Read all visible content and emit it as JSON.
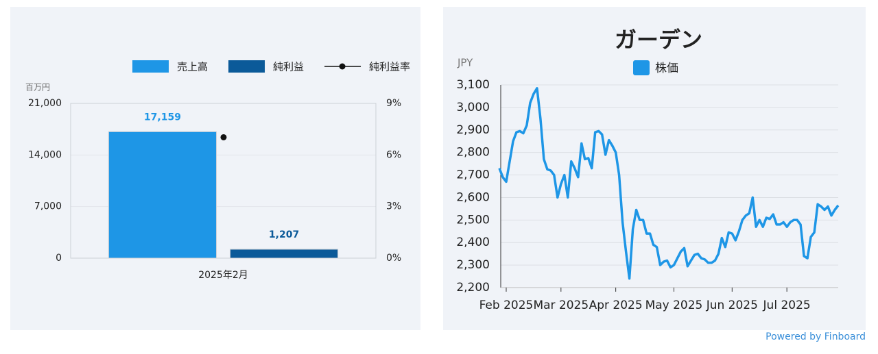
{
  "chart_data": [
    {
      "type": "bar",
      "categories": [
        "2025年2月"
      ],
      "y_label": "百万円",
      "series": [
        {
          "name": "売上高",
          "color": "#1e96e6",
          "values": [
            17159
          ],
          "value_labels": [
            "17,159"
          ]
        },
        {
          "name": "純利益",
          "color": "#0b5a99",
          "values": [
            1207
          ],
          "value_labels": [
            "1,207"
          ]
        },
        {
          "name": "純利益率",
          "color": "#111111",
          "values": [
            7.03
          ],
          "axis": "y2"
        }
      ],
      "ylim": [
        0,
        21000
      ],
      "yticks": [
        0,
        {
          "value": 7000,
          "label": "7,000"
        },
        {
          "value": 14000,
          "label": "14,000"
        },
        {
          "value": 21000,
          "label": "21,000"
        }
      ],
      "y2lim": [
        0,
        9
      ],
      "y2ticks": [
        {
          "value": 0,
          "label": "0%"
        },
        {
          "value": 3,
          "label": "3%"
        },
        {
          "value": 6,
          "label": "6%"
        },
        {
          "value": 9,
          "label": "9%"
        }
      ],
      "grid": true,
      "legend": "top-right"
    },
    {
      "type": "line",
      "title": "ガーデン",
      "y_label": "JPY",
      "categories": [
        null,
        null,
        "Feb 2025",
        null,
        null,
        null,
        null,
        null,
        null,
        null,
        null,
        null,
        null,
        null,
        null,
        null,
        null,
        null,
        "Mar 2025",
        null,
        null,
        null,
        null,
        null,
        null,
        null,
        null,
        null,
        null,
        null,
        null,
        null,
        null,
        null,
        "Apr 2025",
        null,
        null,
        null,
        null,
        null,
        null,
        null,
        null,
        null,
        null,
        null,
        null,
        null,
        null,
        null,
        null,
        "May 2025",
        null,
        null,
        null,
        null,
        null,
        null,
        null,
        null,
        null,
        null,
        null,
        null,
        null,
        null,
        null,
        null,
        "Jun 2025",
        null,
        null,
        null,
        null,
        null,
        null,
        null,
        null,
        null,
        null,
        null,
        null,
        null,
        null,
        null,
        "Jul 2025",
        null,
        null,
        null,
        null,
        null,
        null,
        null,
        null,
        null,
        null,
        null,
        null,
        null,
        null,
        null
      ],
      "series": [
        {
          "name": "株価",
          "color": "#1e96e6",
          "values": [
            2730,
            2690,
            2670,
            2760,
            2850,
            2890,
            2895,
            2885,
            2920,
            3020,
            3060,
            3085,
            2950,
            2770,
            2725,
            2720,
            2700,
            2600,
            2660,
            2700,
            2600,
            2760,
            2730,
            2690,
            2840,
            2770,
            2775,
            2730,
            2890,
            2895,
            2880,
            2790,
            2855,
            2830,
            2800,
            2700,
            2490,
            2360,
            2240,
            2460,
            2545,
            2500,
            2500,
            2440,
            2440,
            2390,
            2380,
            2300,
            2315,
            2320,
            2290,
            2300,
            2330,
            2360,
            2375,
            2295,
            2320,
            2345,
            2350,
            2330,
            2325,
            2310,
            2310,
            2320,
            2350,
            2420,
            2380,
            2445,
            2440,
            2410,
            2450,
            2500,
            2520,
            2530,
            2600,
            2470,
            2500,
            2470,
            2510,
            2505,
            2525,
            2480,
            2480,
            2490,
            2470,
            2490,
            2500,
            2500,
            2480,
            2340,
            2330,
            2425,
            2445,
            2570,
            2560,
            2545,
            2560,
            2520,
            2545,
            2565
          ]
        }
      ],
      "ylim": [
        2200,
        3100
      ],
      "yticks": [
        {
          "value": 2200,
          "label": "2,200"
        },
        {
          "value": 2300,
          "label": "2,300"
        },
        {
          "value": 2400,
          "label": "2,400"
        },
        {
          "value": 2500,
          "label": "2,500"
        },
        {
          "value": 2600,
          "label": "2,600"
        },
        {
          "value": 2700,
          "label": "2,700"
        },
        {
          "value": 2800,
          "label": "2,800"
        },
        {
          "value": 2900,
          "label": "2,900"
        },
        {
          "value": 3000,
          "label": "3,000"
        },
        {
          "value": 3100,
          "label": "3,100"
        }
      ],
      "grid": true,
      "legend": "top"
    }
  ],
  "footer": "Powered by Finboard"
}
